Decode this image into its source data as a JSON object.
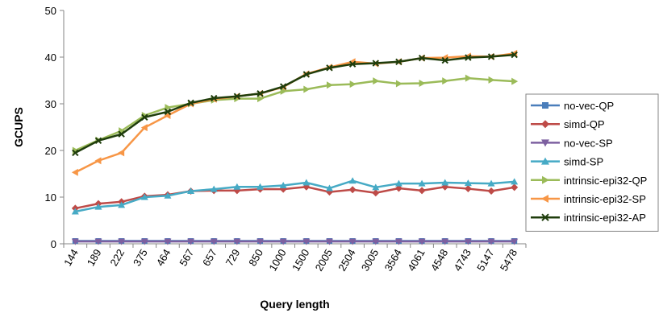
{
  "chart_data": {
    "type": "line",
    "title": "",
    "xlabel": "Query length",
    "ylabel": "GCUPS",
    "ylim": [
      0,
      50
    ],
    "yticks": [
      0,
      10,
      20,
      30,
      40,
      50
    ],
    "grid": false,
    "legend_position": "right",
    "categories": [
      "144",
      "189",
      "222",
      "375",
      "464",
      "567",
      "657",
      "729",
      "850",
      "1000",
      "1500",
      "2005",
      "2504",
      "3005",
      "3564",
      "4061",
      "4548",
      "4743",
      "5147",
      "5478"
    ],
    "series": [
      {
        "name": "no-vec-QP",
        "color": "#4a7ebb",
        "marker": "square",
        "values": [
          0.6,
          0.6,
          0.6,
          0.6,
          0.6,
          0.6,
          0.6,
          0.6,
          0.6,
          0.6,
          0.6,
          0.6,
          0.6,
          0.6,
          0.6,
          0.6,
          0.6,
          0.6,
          0.6,
          0.6
        ]
      },
      {
        "name": "simd-QP",
        "color": "#be4b48",
        "marker": "diamond",
        "values": [
          7.6,
          8.6,
          9.0,
          10.2,
          10.5,
          11.3,
          11.4,
          11.4,
          11.7,
          11.7,
          12.2,
          11.1,
          11.6,
          10.9,
          11.9,
          11.4,
          12.2,
          11.8,
          11.3,
          12.1
        ]
      },
      {
        "name": "no-vec-SP",
        "color": "#7d60a0",
        "marker": "triangle-down",
        "values": [
          0.5,
          0.5,
          0.5,
          0.5,
          0.5,
          0.5,
          0.5,
          0.5,
          0.5,
          0.5,
          0.5,
          0.5,
          0.5,
          0.5,
          0.5,
          0.5,
          0.5,
          0.5,
          0.5,
          0.5
        ]
      },
      {
        "name": "simd-SP",
        "color": "#46aac5",
        "marker": "triangle",
        "values": [
          6.9,
          7.9,
          8.3,
          10.0,
          10.3,
          11.3,
          11.7,
          12.2,
          12.2,
          12.5,
          13.1,
          11.9,
          13.5,
          12.1,
          12.9,
          12.9,
          13.1,
          13.0,
          12.9,
          13.3
        ]
      },
      {
        "name": "intrinsic-epi32-QP",
        "color": "#9bbb59",
        "marker": "triangle-right",
        "values": [
          20.0,
          22.2,
          24.2,
          27.5,
          29.2,
          30.0,
          30.8,
          31.1,
          31.1,
          32.7,
          33.1,
          34.0,
          34.2,
          34.9,
          34.3,
          34.4,
          34.9,
          35.5,
          35.1,
          34.8
        ]
      },
      {
        "name": "intrinsic-epi32-SP",
        "color": "#f79646",
        "marker": "triangle-left",
        "values": [
          15.3,
          17.8,
          19.5,
          24.9,
          27.5,
          30.0,
          31.0,
          31.6,
          32.2,
          33.6,
          36.4,
          37.8,
          39.0,
          38.6,
          39.0,
          39.8,
          39.9,
          40.2,
          40.1,
          40.8
        ]
      },
      {
        "name": "intrinsic-epi32-AP",
        "color": "#1f3d0c",
        "marker": "x",
        "values": [
          19.5,
          22.1,
          23.5,
          27.1,
          28.3,
          30.2,
          31.2,
          31.6,
          32.2,
          33.7,
          36.3,
          37.7,
          38.5,
          38.7,
          39.0,
          39.8,
          39.3,
          39.9,
          40.1,
          40.5
        ]
      }
    ]
  }
}
